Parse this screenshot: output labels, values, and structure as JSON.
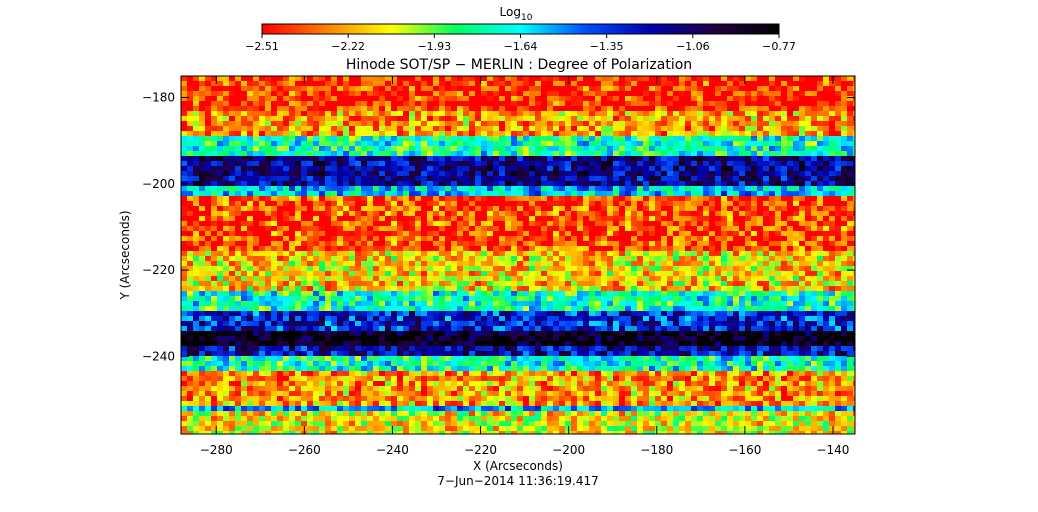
{
  "chart_data": {
    "type": "heatmap",
    "title": "Hinode SOT/SP − MERLIN : Degree of Polarization",
    "xlabel": "X (Arcseconds)",
    "ylabel": "Y (Arcseconds)",
    "timestamp": "7−Jun−2014 11:36:19.417",
    "xlim": [
      -288,
      -135
    ],
    "ylim": [
      -258,
      -175
    ],
    "x_ticks": [
      -280,
      -260,
      -240,
      -220,
      -200,
      -180,
      -160,
      -140
    ],
    "x_tick_labels": [
      "−280",
      "−260",
      "−240",
      "−220",
      "−200",
      "−180",
      "−160",
      "−140"
    ],
    "y_ticks": [
      -180,
      -200,
      -220,
      -240
    ],
    "y_tick_labels": [
      "−180",
      "−200",
      "−220",
      "−240"
    ],
    "colorbar": {
      "label_base": "Log",
      "label_sub": "10",
      "range": [
        -2.51,
        -0.77
      ],
      "tick_values": [
        -2.51,
        -2.22,
        -1.93,
        -1.64,
        -1.35,
        -1.06,
        -0.77
      ],
      "tick_labels": [
        "−2.51",
        "−2.22",
        "−1.93",
        "−1.64",
        "−1.35",
        "−1.06",
        "−0.77"
      ],
      "colormap": [
        "#ff0000",
        "#ff8000",
        "#ffff00",
        "#00ff60",
        "#00ffff",
        "#0050ff",
        "#0000b0",
        "#200040",
        "#000000"
      ]
    },
    "bands": [
      {
        "y_from": -258,
        "y_to": -253,
        "mean": -2.1
      },
      {
        "y_from": -253,
        "y_to": -251,
        "mean": -1.55
      },
      {
        "y_from": -251,
        "y_to": -243,
        "mean": -2.25
      },
      {
        "y_from": -243,
        "y_to": -240,
        "mean": -1.75
      },
      {
        "y_from": -240,
        "y_to": -238,
        "mean": -1.2
      },
      {
        "y_from": -238,
        "y_to": -234,
        "mean": -0.85
      },
      {
        "y_from": -234,
        "y_to": -229,
        "mean": -1.3
      },
      {
        "y_from": -229,
        "y_to": -225,
        "mean": -1.75
      },
      {
        "y_from": -225,
        "y_to": -216,
        "mean": -2.15
      },
      {
        "y_from": -216,
        "y_to": -203,
        "mean": -2.4
      },
      {
        "y_from": -203,
        "y_to": -200,
        "mean": -1.6
      },
      {
        "y_from": -200,
        "y_to": -193,
        "mean": -1.15
      },
      {
        "y_from": -193,
        "y_to": -189,
        "mean": -1.75
      },
      {
        "y_from": -189,
        "y_to": -183,
        "mean": -2.25
      },
      {
        "y_from": -183,
        "y_to": -175,
        "mean": -2.45
      }
    ]
  }
}
